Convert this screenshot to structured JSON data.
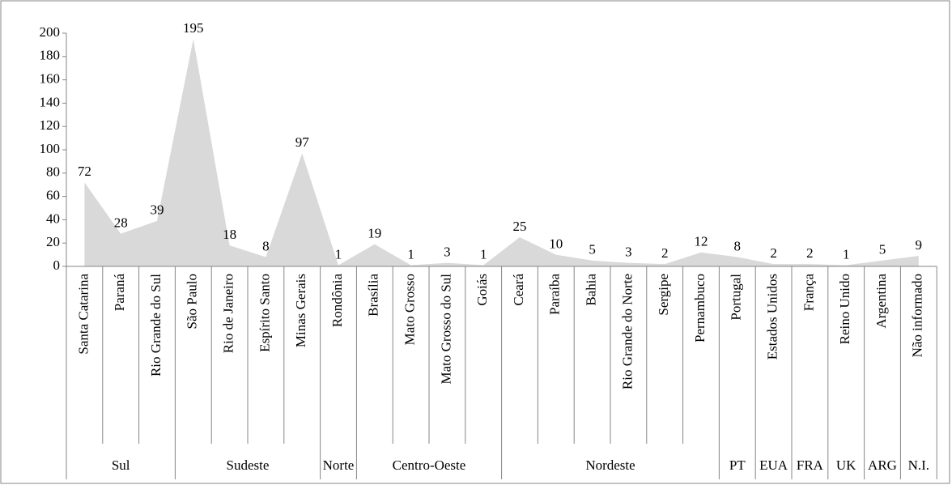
{
  "chart_data": {
    "type": "area",
    "color": "#d9d9d9",
    "groups": [
      {
        "label": "Sul",
        "categories": [
          "Santa Catarina",
          "Paraná",
          "Rio Grande do Sul"
        ]
      },
      {
        "label": "Sudeste",
        "categories": [
          "São Paulo",
          "Rio de Janeiro",
          "Espírito Santo",
          "Minas Gerais"
        ]
      },
      {
        "label": "Norte",
        "categories": [
          "Rondônia"
        ]
      },
      {
        "label": "Centro-Oeste",
        "categories": [
          "Brasília",
          "Mato Grosso",
          "Mato Grosso do Sul",
          "Goiás"
        ]
      },
      {
        "label": "Nordeste",
        "categories": [
          "Ceará",
          "Paraíba",
          "Bahia",
          "Rio Grande do Norte",
          "Sergipe",
          "Pernambuco"
        ]
      },
      {
        "label": "PT",
        "categories": [
          "Portugal"
        ]
      },
      {
        "label": "EUA",
        "categories": [
          "Estados Unidos"
        ]
      },
      {
        "label": "FRA",
        "categories": [
          "França"
        ]
      },
      {
        "label": "UK",
        "categories": [
          "Reino Unido"
        ]
      },
      {
        "label": "ARG",
        "categories": [
          "Argentina"
        ]
      },
      {
        "label": "N.I.",
        "categories": [
          "Não informado"
        ]
      }
    ],
    "values": [
      72,
      28,
      39,
      195,
      18,
      8,
      97,
      1,
      19,
      1,
      3,
      1,
      25,
      10,
      5,
      3,
      2,
      12,
      8,
      2,
      2,
      1,
      5,
      9
    ],
    "ylim": [
      0,
      200
    ],
    "yticks": [
      0,
      20,
      40,
      60,
      80,
      100,
      120,
      140,
      160,
      180,
      200
    ]
  }
}
